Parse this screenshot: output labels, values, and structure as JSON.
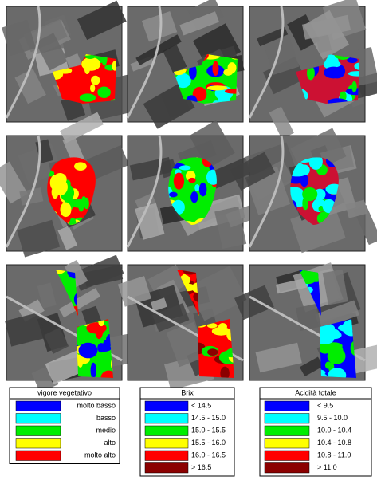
{
  "legends": [
    {
      "title": "vigore vegetativo",
      "entries": [
        {
          "label": "molto basso",
          "color": "#0000ff"
        },
        {
          "label": "basso",
          "color": "#00ffff"
        },
        {
          "label": "medio",
          "color": "#00ee00"
        },
        {
          "label": "alto",
          "color": "#ffff00"
        },
        {
          "label": "molto alto",
          "color": "#ff0000"
        }
      ]
    },
    {
      "title": "Brix",
      "entries": [
        {
          "label": "< 14.5",
          "color": "#0000ff"
        },
        {
          "label": "14.5 - 15.0",
          "color": "#00ffff"
        },
        {
          "label": "15.0 - 15.5",
          "color": "#00ee00"
        },
        {
          "label": "15.5 - 16.0",
          "color": "#ffff00"
        },
        {
          "label": "16.0 - 16.5",
          "color": "#ff0000"
        },
        {
          "label": "> 16.5",
          "color": "#8b0000"
        }
      ]
    },
    {
      "title": "Acidità totale",
      "entries": [
        {
          "label": "< 9.5",
          "color": "#0000ff"
        },
        {
          "label": "9.5 - 10.0",
          "color": "#00ffff"
        },
        {
          "label": "10.0 - 10.4",
          "color": "#00ee00"
        },
        {
          "label": "10.4 - 10.8",
          "color": "#ffff00"
        },
        {
          "label": "10.8 - 11.0",
          "color": "#ff0000"
        },
        {
          "label": "> 11.0",
          "color": "#8b0000"
        }
      ]
    }
  ]
}
